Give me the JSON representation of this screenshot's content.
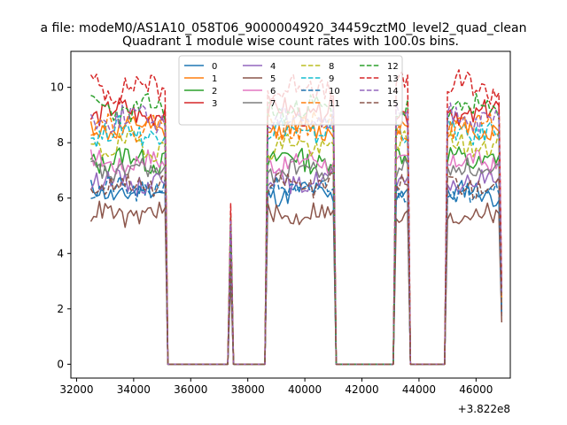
{
  "figure": {
    "suptitle": "a file: modeM0/AS1A10_058T06_9000004920_34459cztM0_level2_quad_clean",
    "title": "Quadrant 1 module wise count rates with 100.0s bins.",
    "x_offset_label": "+3.822e8"
  },
  "chart_data": {
    "type": "line",
    "title": "Quadrant 1 module wise count rates with 100.0s bins.",
    "xlabel": "",
    "ylabel": "",
    "xlim": [
      31800,
      47200
    ],
    "ylim": [
      -0.5,
      11.3
    ],
    "x_ticks": [
      32000,
      34000,
      36000,
      38000,
      40000,
      42000,
      44000,
      46000
    ],
    "y_ticks": [
      0,
      2,
      4,
      6,
      8,
      10
    ],
    "x_offset": "+3.822e8",
    "grid": false,
    "legend_placement": "top-center",
    "legend_columns": 4,
    "bin_seconds": 100,
    "active_segments": [
      [
        32500,
        35100
      ],
      [
        38700,
        41000
      ],
      [
        43200,
        43600
      ],
      [
        45000,
        46900
      ]
    ],
    "spike": {
      "x": 37400,
      "fraction_of_mean": 0.58
    },
    "series": [
      {
        "name": "0",
        "color": "#1f77b4",
        "dash": "solid",
        "mean": 6.2,
        "amp": 0.35
      },
      {
        "name": "1",
        "color": "#ff7f0e",
        "dash": "solid",
        "mean": 8.5,
        "amp": 0.35
      },
      {
        "name": "2",
        "color": "#2ca02c",
        "dash": "solid",
        "mean": 7.4,
        "amp": 0.4
      },
      {
        "name": "3",
        "color": "#d62728",
        "dash": "solid",
        "mean": 9.1,
        "amp": 0.4
      },
      {
        "name": "4",
        "color": "#9467bd",
        "dash": "solid",
        "mean": 6.6,
        "amp": 0.35
      },
      {
        "name": "5",
        "color": "#8c564b",
        "dash": "solid",
        "mean": 5.4,
        "amp": 0.35
      },
      {
        "name": "6",
        "color": "#e377c2",
        "dash": "solid",
        "mean": 7.3,
        "amp": 0.35
      },
      {
        "name": "7",
        "color": "#7f7f7f",
        "dash": "solid",
        "mean": 7.0,
        "amp": 0.35
      },
      {
        "name": "8",
        "color": "#bcbd22",
        "dash": "dashed",
        "mean": 7.9,
        "amp": 0.4
      },
      {
        "name": "9",
        "color": "#17becf",
        "dash": "dashed",
        "mean": 8.4,
        "amp": 0.4
      },
      {
        "name": "10",
        "color": "#1f77b4",
        "dash": "dashed",
        "mean": 6.3,
        "amp": 0.35
      },
      {
        "name": "11",
        "color": "#ff7f0e",
        "dash": "dashed",
        "mean": 8.6,
        "amp": 0.4
      },
      {
        "name": "12",
        "color": "#2ca02c",
        "dash": "dashed",
        "mean": 9.2,
        "amp": 0.4
      },
      {
        "name": "13",
        "color": "#d62728",
        "dash": "dashed",
        "mean": 10.0,
        "amp": 0.45
      },
      {
        "name": "14",
        "color": "#9467bd",
        "dash": "dashed",
        "mean": 8.9,
        "amp": 0.4
      },
      {
        "name": "15",
        "color": "#8c564b",
        "dash": "dashed",
        "mean": 6.5,
        "amp": 0.35
      }
    ]
  }
}
